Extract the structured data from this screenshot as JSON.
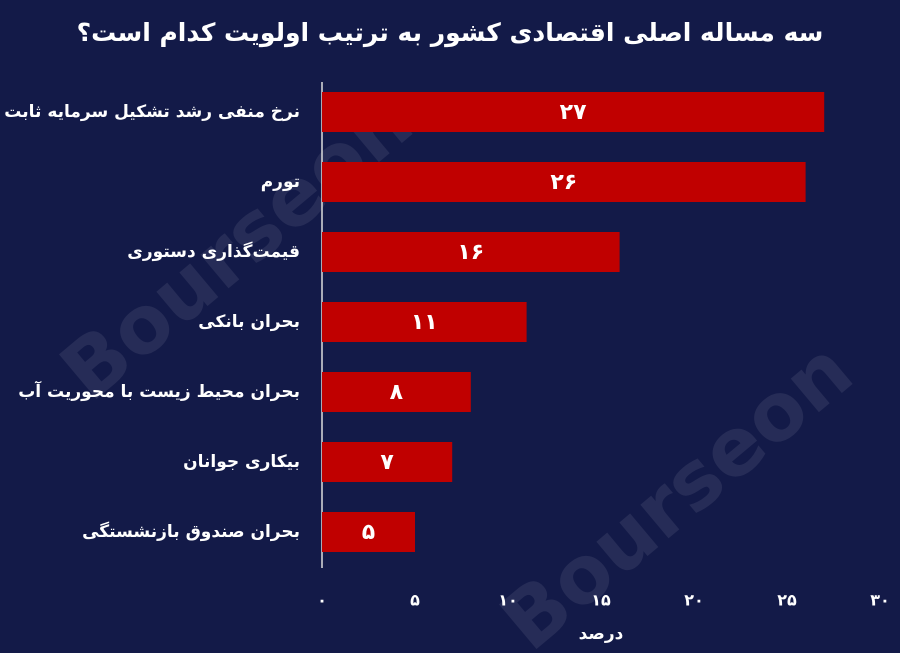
{
  "chart_data": {
    "type": "bar",
    "orientation": "horizontal",
    "title": "سه مساله اصلی اقتصادی کشور به ترتیب اولویت کدام است؟",
    "categories": [
      "نرخ منفی رشد تشکیل سرمایه ثابت",
      "تورم",
      "قیمت‌گذاری دستوری",
      "بحران بانکی",
      "بحران محیط زیست با محوریت آب",
      "بیکاری جوانان",
      "بحران صندوق بازنشستگی"
    ],
    "values": [
      27,
      26,
      16,
      11,
      8,
      7,
      5
    ],
    "value_labels": [
      "۲۷",
      "۲۶",
      "۱۶",
      "۱۱",
      "۸",
      "۷",
      "۵"
    ],
    "color": "#c00000",
    "xlim": [
      0,
      30
    ],
    "xticks": [
      {
        "value": 0,
        "label": "۰"
      },
      {
        "value": 5,
        "label": "۵"
      },
      {
        "value": 10,
        "label": "۱۰"
      },
      {
        "value": 15,
        "label": "۱۵"
      },
      {
        "value": 20,
        "label": "۲۰"
      },
      {
        "value": 25,
        "label": "۲۵"
      },
      {
        "value": 30,
        "label": "۳۰"
      }
    ],
    "x_label": "درصد",
    "grid": false,
    "watermark": "Bourseon"
  }
}
